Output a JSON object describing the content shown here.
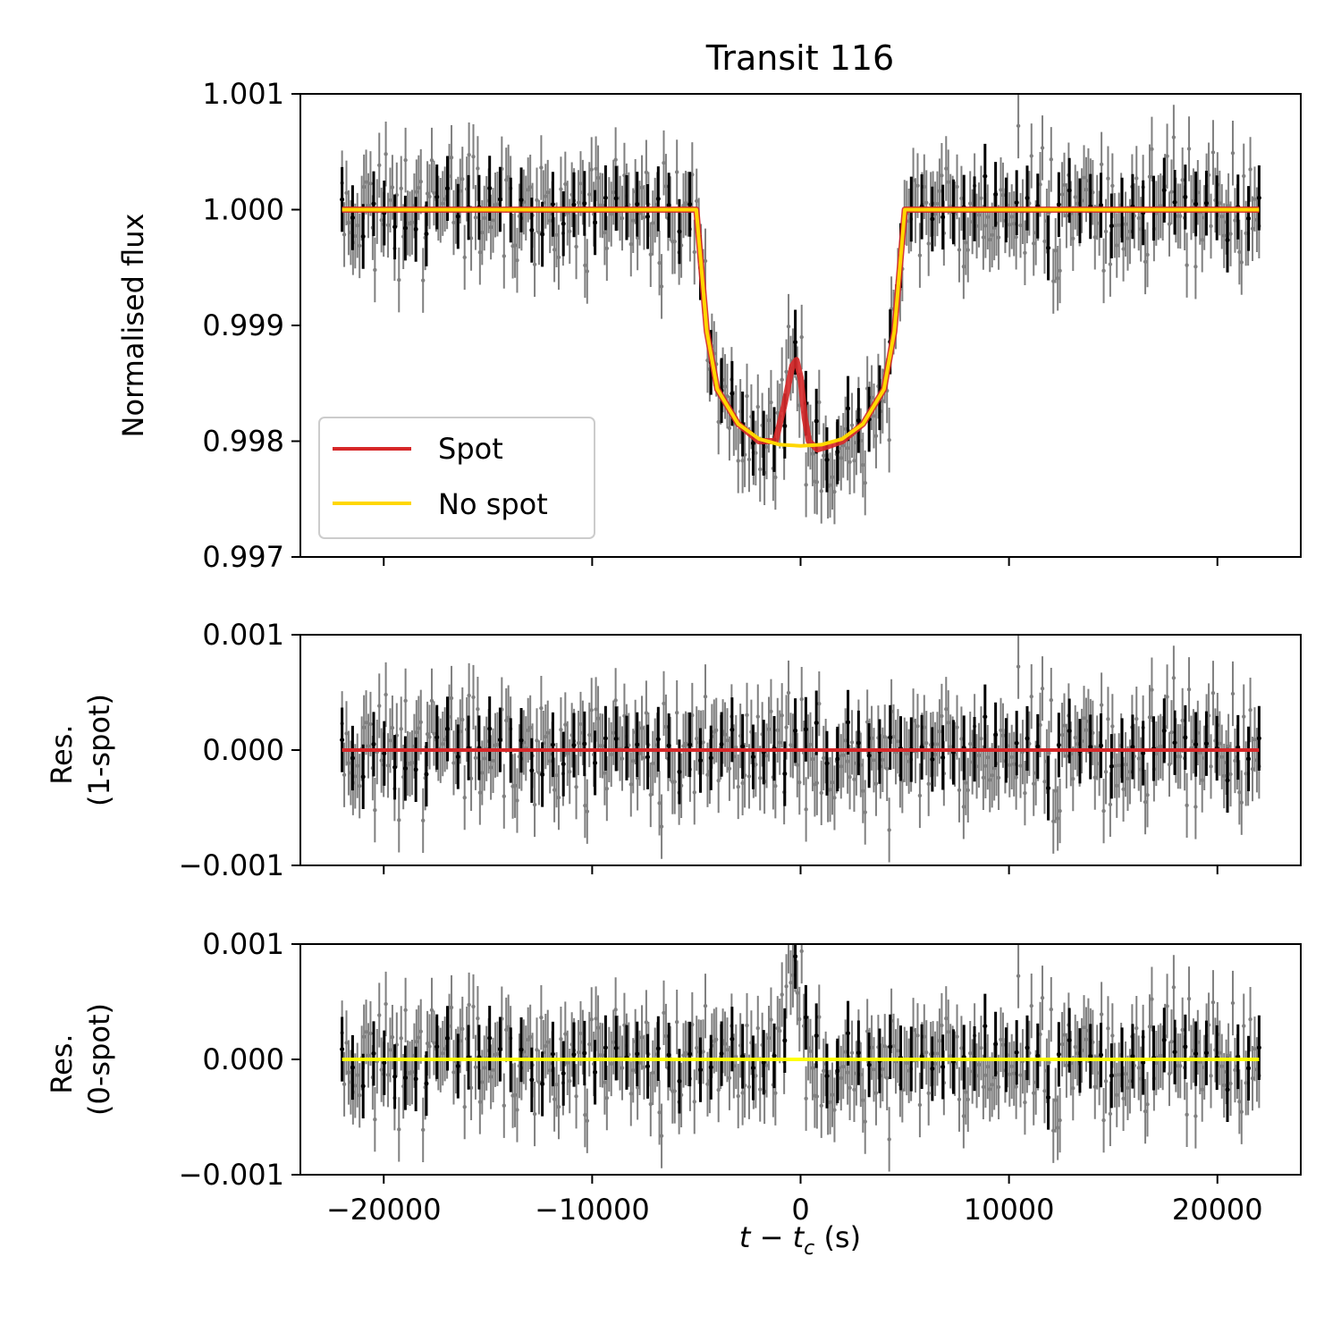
{
  "chart_data": [
    {
      "type": "line",
      "panel": "top",
      "title": "Transit 116",
      "xlabel": "",
      "ylabel": "Normalised flux",
      "xlim": [
        -24000,
        24000
      ],
      "ylim": [
        0.997,
        1.001
      ],
      "yticks": [
        "0.997",
        "0.998",
        "0.999",
        "1.000",
        "1.001"
      ],
      "legend": {
        "position": "lower-left",
        "entries": [
          "Spot",
          "No spot"
        ]
      },
      "series": [
        {
          "name": "Spot",
          "color": "#d62728",
          "x": [
            -22000,
            -5000,
            -4500,
            -4000,
            -3000,
            -2000,
            -1200,
            -800,
            -400,
            -200,
            0,
            200,
            400,
            800,
            1200,
            2000,
            3000,
            4000,
            4500,
            5000,
            22000
          ],
          "y": [
            1.0,
            1.0,
            0.99895,
            0.99845,
            0.99815,
            0.998,
            0.998,
            0.9983,
            0.99865,
            0.9987,
            0.99855,
            0.9982,
            0.998,
            0.99793,
            0.99795,
            0.998,
            0.99815,
            0.99845,
            0.99895,
            1.0,
            1.0
          ]
        },
        {
          "name": "No spot",
          "color": "#ffd700",
          "x": [
            -22000,
            -5000,
            -4500,
            -4000,
            -3000,
            -2000,
            -1000,
            0,
            1000,
            2000,
            3000,
            4000,
            4500,
            5000,
            22000
          ],
          "y": [
            1.0,
            1.0,
            0.99895,
            0.99845,
            0.99815,
            0.99802,
            0.99797,
            0.99796,
            0.99797,
            0.99802,
            0.99815,
            0.99845,
            0.99895,
            1.0,
            1.0
          ]
        }
      ]
    },
    {
      "type": "scatter",
      "panel": "middle",
      "xlabel": "",
      "ylabel": [
        "Res.",
        "(1-spot)"
      ],
      "xlim": [
        -24000,
        24000
      ],
      "ylim": [
        -0.001,
        0.001
      ],
      "yticks": [
        "−0.001",
        "0.000",
        "0.001"
      ],
      "reference_line": {
        "y": 0.0,
        "color": "#d62728"
      }
    },
    {
      "type": "scatter",
      "panel": "bottom",
      "xlabel": "t − t_c (s)",
      "ylabel": [
        "Res.",
        "(0-spot)"
      ],
      "xlim": [
        -24000,
        24000
      ],
      "ylim": [
        -0.001,
        0.001
      ],
      "yticks": [
        "−0.001",
        "0.000",
        "0.001"
      ],
      "xticks": [
        -20000,
        -10000,
        0,
        10000,
        20000
      ],
      "xtick_labels": [
        "−20000",
        "−10000",
        "0",
        "10000",
        "20000"
      ],
      "reference_line": {
        "y": 0.0,
        "color": "#ffff00"
      }
    }
  ],
  "xlabel_parts": {
    "t": "t",
    "minus": " − ",
    "tc": "t",
    "sub": "c",
    "unit": " (s)"
  },
  "data_points": {
    "raw_color": "#808080",
    "binned_color": "#000000",
    "x_range": [
      -22000,
      22000
    ],
    "raw_count": 420,
    "binned_count": 88,
    "raw_noise_sigma": 0.00024,
    "raw_errorbar": 0.00028,
    "binned_noise_sigma": 0.00011,
    "binned_errorbar": 0.00028
  }
}
